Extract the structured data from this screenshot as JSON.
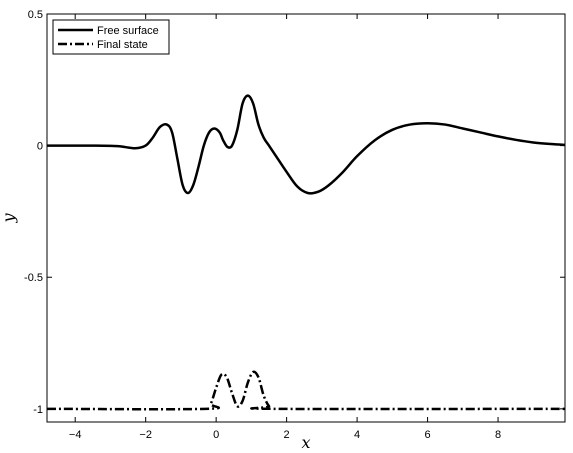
{
  "chart_data": {
    "type": "line",
    "xlabel": "x",
    "ylabel": "y",
    "xlim": [
      -4.8,
      9.9
    ],
    "ylim": [
      -1.05,
      0.5
    ],
    "x_ticks": [
      -4,
      -2,
      0,
      2,
      4,
      6,
      8
    ],
    "y_ticks": [
      0.5,
      0,
      -0.5,
      -1
    ],
    "x_tick_labels": [
      "−4",
      "−2",
      "0",
      "2",
      "4",
      "6",
      "8"
    ],
    "y_tick_labels": [
      "0.5",
      "0",
      "-0.5",
      "-1"
    ],
    "grid": false,
    "legend": {
      "placement": "top-left",
      "entries": [
        "Free surface",
        "Final state"
      ]
    },
    "series": [
      {
        "name": "Free surface",
        "style": "solid",
        "color": "#000000",
        "points": [
          [
            -4.8,
            0.0
          ],
          [
            -3.5,
            0.0
          ],
          [
            -2.8,
            -0.002
          ],
          [
            -2.3,
            -0.01
          ],
          [
            -2.0,
            0.0
          ],
          [
            -1.8,
            0.03
          ],
          [
            -1.6,
            0.07
          ],
          [
            -1.4,
            0.08
          ],
          [
            -1.25,
            0.05
          ],
          [
            -1.1,
            -0.05
          ],
          [
            -0.95,
            -0.15
          ],
          [
            -0.8,
            -0.18
          ],
          [
            -0.65,
            -0.15
          ],
          [
            -0.5,
            -0.08
          ],
          [
            -0.35,
            0.0
          ],
          [
            -0.2,
            0.05
          ],
          [
            -0.05,
            0.065
          ],
          [
            0.1,
            0.05
          ],
          [
            0.2,
            0.02
          ],
          [
            0.32,
            -0.005
          ],
          [
            0.45,
            0.0
          ],
          [
            0.6,
            0.06
          ],
          [
            0.75,
            0.16
          ],
          [
            0.9,
            0.19
          ],
          [
            1.05,
            0.16
          ],
          [
            1.2,
            0.08
          ],
          [
            1.35,
            0.03
          ],
          [
            1.5,
            0.0
          ],
          [
            1.7,
            -0.04
          ],
          [
            2.0,
            -0.1
          ],
          [
            2.3,
            -0.155
          ],
          [
            2.6,
            -0.18
          ],
          [
            2.9,
            -0.175
          ],
          [
            3.2,
            -0.15
          ],
          [
            3.6,
            -0.1
          ],
          [
            4.0,
            -0.04
          ],
          [
            4.5,
            0.02
          ],
          [
            5.0,
            0.06
          ],
          [
            5.5,
            0.08
          ],
          [
            6.0,
            0.085
          ],
          [
            6.5,
            0.08
          ],
          [
            7.0,
            0.065
          ],
          [
            7.5,
            0.05
          ],
          [
            8.0,
            0.035
          ],
          [
            8.5,
            0.022
          ],
          [
            9.0,
            0.012
          ],
          [
            9.5,
            0.006
          ],
          [
            9.9,
            0.003
          ]
        ]
      },
      {
        "name": "Final state",
        "style": "dashdot",
        "color": "#000000",
        "points": [
          [
            -4.8,
            -1.0
          ],
          [
            -0.3,
            -1.0
          ],
          [
            -0.15,
            -0.98
          ],
          [
            0.0,
            -0.92
          ],
          [
            0.15,
            -0.87
          ],
          [
            0.3,
            -0.88
          ],
          [
            0.45,
            -0.94
          ],
          [
            0.6,
            -0.99
          ],
          [
            0.75,
            -0.97
          ],
          [
            0.9,
            -0.9
          ],
          [
            1.05,
            -0.86
          ],
          [
            1.2,
            -0.88
          ],
          [
            1.35,
            -0.95
          ],
          [
            1.5,
            -0.99
          ],
          [
            1.65,
            -1.0
          ],
          [
            9.9,
            -1.0
          ]
        ]
      }
    ]
  }
}
